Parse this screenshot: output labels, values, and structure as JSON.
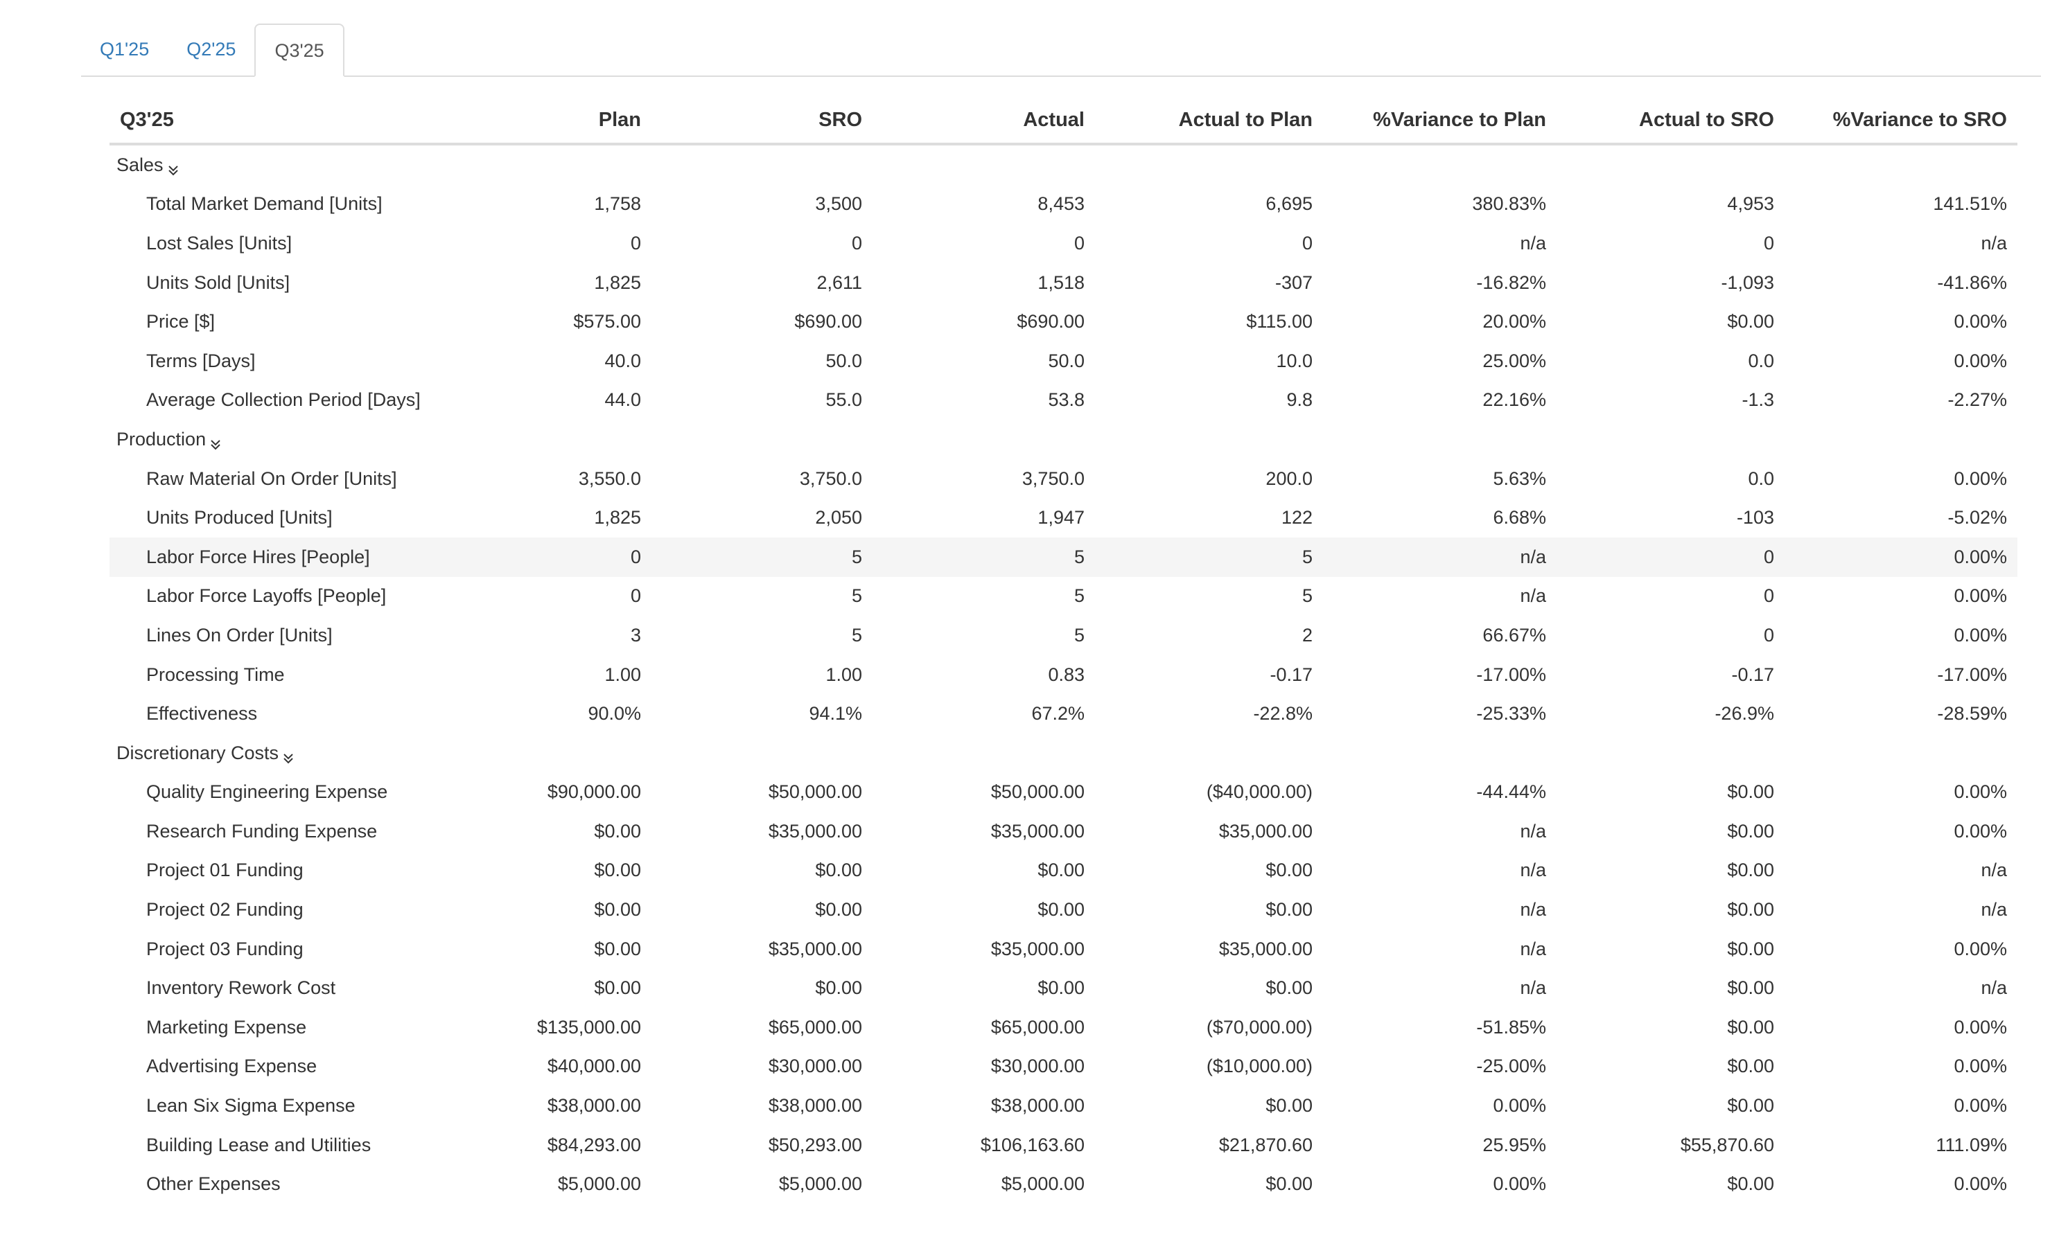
{
  "tabs": [
    {
      "label": "Q1'25",
      "active": false
    },
    {
      "label": "Q2'25",
      "active": false
    },
    {
      "label": "Q3'25",
      "active": true
    }
  ],
  "table": {
    "columns": [
      "Q3'25",
      "Plan",
      "SRO",
      "Actual",
      "Actual to Plan",
      "%Variance to Plan",
      "Actual to SRO",
      "%Variance to SRO"
    ],
    "groups": [
      {
        "label": "Sales",
        "rows": [
          {
            "label": "Total Market Demand [Units]",
            "values": [
              "1,758",
              "3,500",
              "8,453",
              "6,695",
              "380.83%",
              "4,953",
              "141.51%"
            ]
          },
          {
            "label": "Lost Sales [Units]",
            "values": [
              "0",
              "0",
              "0",
              "0",
              "n/a",
              "0",
              "n/a"
            ]
          },
          {
            "label": "Units Sold [Units]",
            "values": [
              "1,825",
              "2,611",
              "1,518",
              "-307",
              "-16.82%",
              "-1,093",
              "-41.86%"
            ]
          },
          {
            "label": "Price [$]",
            "values": [
              "$575.00",
              "$690.00",
              "$690.00",
              "$115.00",
              "20.00%",
              "$0.00",
              "0.00%"
            ]
          },
          {
            "label": "Terms [Days]",
            "values": [
              "40.0",
              "50.0",
              "50.0",
              "10.0",
              "25.00%",
              "0.0",
              "0.00%"
            ]
          },
          {
            "label": "Average Collection Period [Days]",
            "values": [
              "44.0",
              "55.0",
              "53.8",
              "9.8",
              "22.16%",
              "-1.3",
              "-2.27%"
            ]
          }
        ]
      },
      {
        "label": "Production",
        "rows": [
          {
            "label": "Raw Material On Order [Units]",
            "values": [
              "3,550.0",
              "3,750.0",
              "3,750.0",
              "200.0",
              "5.63%",
              "0.0",
              "0.00%"
            ]
          },
          {
            "label": "Units Produced [Units]",
            "values": [
              "1,825",
              "2,050",
              "1,947",
              "122",
              "6.68%",
              "-103",
              "-5.02%"
            ]
          },
          {
            "label": "Labor Force Hires [People]",
            "values": [
              "0",
              "5",
              "5",
              "5",
              "n/a",
              "0",
              "0.00%"
            ],
            "highlighted": true
          },
          {
            "label": "Labor Force Layoffs [People]",
            "values": [
              "0",
              "5",
              "5",
              "5",
              "n/a",
              "0",
              "0.00%"
            ]
          },
          {
            "label": "Lines On Order [Units]",
            "values": [
              "3",
              "5",
              "5",
              "2",
              "66.67%",
              "0",
              "0.00%"
            ]
          },
          {
            "label": "Processing Time",
            "values": [
              "1.00",
              "1.00",
              "0.83",
              "-0.17",
              "-17.00%",
              "-0.17",
              "-17.00%"
            ]
          },
          {
            "label": "Effectiveness",
            "values": [
              "90.0%",
              "94.1%",
              "67.2%",
              "-22.8%",
              "-25.33%",
              "-26.9%",
              "-28.59%"
            ]
          }
        ]
      },
      {
        "label": "Discretionary Costs",
        "rows": [
          {
            "label": "Quality Engineering Expense",
            "values": [
              "$90,000.00",
              "$50,000.00",
              "$50,000.00",
              "($40,000.00)",
              "-44.44%",
              "$0.00",
              "0.00%"
            ]
          },
          {
            "label": "Research Funding Expense",
            "values": [
              "$0.00",
              "$35,000.00",
              "$35,000.00",
              "$35,000.00",
              "n/a",
              "$0.00",
              "0.00%"
            ]
          },
          {
            "label": "Project 01 Funding",
            "values": [
              "$0.00",
              "$0.00",
              "$0.00",
              "$0.00",
              "n/a",
              "$0.00",
              "n/a"
            ]
          },
          {
            "label": "Project 02 Funding",
            "values": [
              "$0.00",
              "$0.00",
              "$0.00",
              "$0.00",
              "n/a",
              "$0.00",
              "n/a"
            ]
          },
          {
            "label": "Project 03 Funding",
            "values": [
              "$0.00",
              "$35,000.00",
              "$35,000.00",
              "$35,000.00",
              "n/a",
              "$0.00",
              "0.00%"
            ]
          },
          {
            "label": "Inventory Rework Cost",
            "values": [
              "$0.00",
              "$0.00",
              "$0.00",
              "$0.00",
              "n/a",
              "$0.00",
              "n/a"
            ]
          },
          {
            "label": "Marketing Expense",
            "values": [
              "$135,000.00",
              "$65,000.00",
              "$65,000.00",
              "($70,000.00)",
              "-51.85%",
              "$0.00",
              "0.00%"
            ]
          },
          {
            "label": "Advertising Expense",
            "values": [
              "$40,000.00",
              "$30,000.00",
              "$30,000.00",
              "($10,000.00)",
              "-25.00%",
              "$0.00",
              "0.00%"
            ]
          },
          {
            "label": "Lean Six Sigma Expense",
            "values": [
              "$38,000.00",
              "$38,000.00",
              "$38,000.00",
              "$0.00",
              "0.00%",
              "$0.00",
              "0.00%"
            ]
          },
          {
            "label": "Building Lease and Utilities",
            "values": [
              "$84,293.00",
              "$50,293.00",
              "$106,163.60",
              "$21,870.60",
              "25.95%",
              "$55,870.60",
              "111.09%"
            ]
          },
          {
            "label": "Other Expenses",
            "values": [
              "$5,000.00",
              "$5,000.00",
              "$5,000.00",
              "$0.00",
              "0.00%",
              "$0.00",
              "0.00%"
            ]
          }
        ]
      }
    ]
  }
}
